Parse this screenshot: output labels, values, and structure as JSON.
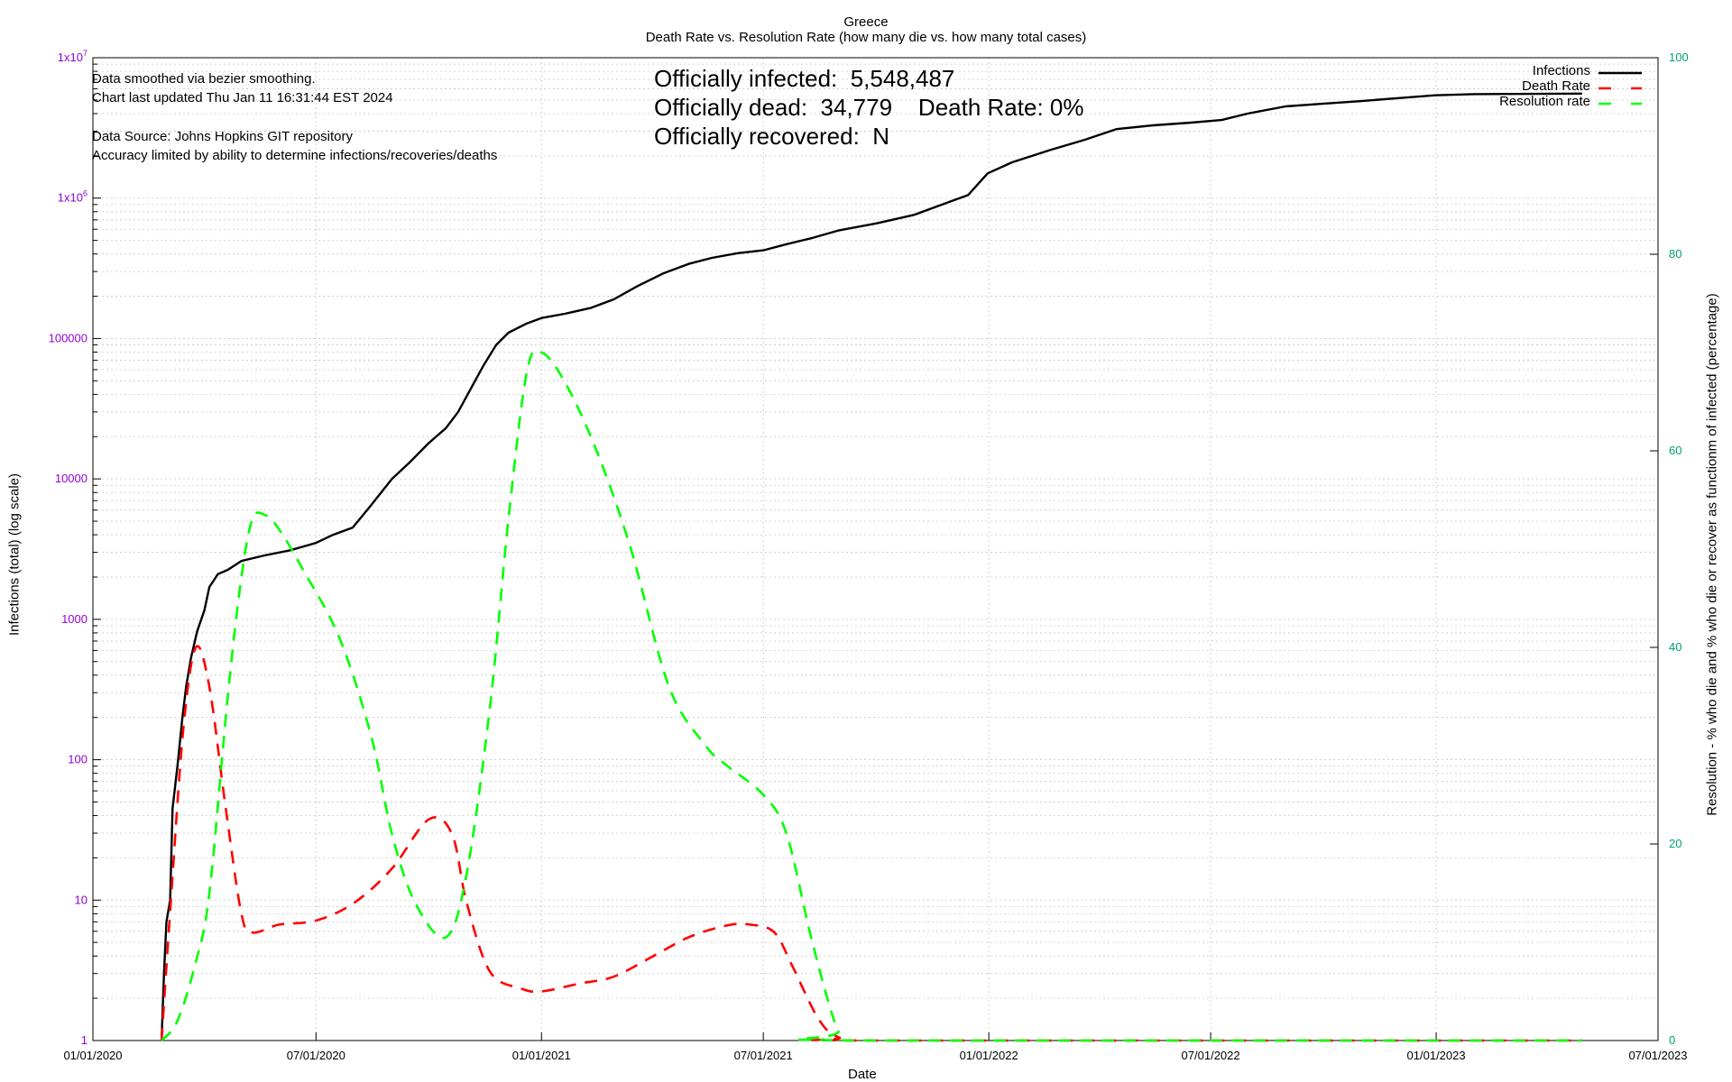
{
  "chart_data": {
    "type": "line",
    "title": "Greece",
    "subtitle": "Death Rate vs. Resolution Rate (how many die vs. how many total cases)",
    "xlabel": "Date",
    "ylabel_left": "Infections (total) (log scale)",
    "ylabel_right": "Resolution - % who die and % who die or recover as functionm of infected (percentage)",
    "x_type": "date",
    "xlim": [
      "2020-01-01",
      "2023-07-01"
    ],
    "x_ticks": [
      "01/01/2020",
      "07/01/2020",
      "01/01/2021",
      "07/01/2021",
      "01/01/2022",
      "07/01/2022",
      "01/01/2023",
      "07/01/2023"
    ],
    "y_left_scale": "log",
    "y_left_lim": [
      1,
      10000000
    ],
    "y_left_ticks": [
      {
        "value": 1,
        "label": "1"
      },
      {
        "value": 10,
        "label": "10"
      },
      {
        "value": 100,
        "label": "100"
      },
      {
        "value": 1000,
        "label": "1000"
      },
      {
        "value": 10000,
        "label": "10000"
      },
      {
        "value": 100000,
        "label": "100000"
      },
      {
        "value": 1000000,
        "label": "1x10",
        "sup": "6"
      },
      {
        "value": 10000000,
        "label": "1x10",
        "sup": "7"
      }
    ],
    "y_right_lim": [
      0,
      100
    ],
    "y_right_ticks": [
      0,
      20,
      40,
      60,
      80,
      100
    ],
    "grid": true,
    "legend_position": "top-right",
    "colors": {
      "left_axis": "#9400d3",
      "right_axis": "#009e73",
      "infections": "#000000",
      "death_rate": "#ff0000",
      "resolution_rate": "#00ff00"
    },
    "series": [
      {
        "name": "Infections",
        "axis": "left",
        "style": "solid",
        "points": [
          [
            "2020-02-26",
            1
          ],
          [
            "2020-02-28",
            3
          ],
          [
            "2020-03-01",
            7
          ],
          [
            "2020-03-04",
            10
          ],
          [
            "2020-03-06",
            45
          ],
          [
            "2020-03-10",
            90
          ],
          [
            "2020-03-14",
            200
          ],
          [
            "2020-03-17",
            330
          ],
          [
            "2020-03-21",
            530
          ],
          [
            "2020-03-26",
            820
          ],
          [
            "2020-04-01",
            1160
          ],
          [
            "2020-04-05",
            1700
          ],
          [
            "2020-04-12",
            2100
          ],
          [
            "2020-04-20",
            2250
          ],
          [
            "2020-05-01",
            2600
          ],
          [
            "2020-05-20",
            2850
          ],
          [
            "2020-06-10",
            3100
          ],
          [
            "2020-07-01",
            3500
          ],
          [
            "2020-07-15",
            4000
          ],
          [
            "2020-07-31",
            4500
          ],
          [
            "2020-08-15",
            6500
          ],
          [
            "2020-09-01",
            10000
          ],
          [
            "2020-09-15",
            13000
          ],
          [
            "2020-10-01",
            18000
          ],
          [
            "2020-10-15",
            23000
          ],
          [
            "2020-10-25",
            30000
          ],
          [
            "2020-11-05",
            45000
          ],
          [
            "2020-11-15",
            65000
          ],
          [
            "2020-11-25",
            90000
          ],
          [
            "2020-12-05",
            110000
          ],
          [
            "2020-12-20",
            128000
          ],
          [
            "2021-01-01",
            140000
          ],
          [
            "2021-01-20",
            150000
          ],
          [
            "2021-02-10",
            165000
          ],
          [
            "2021-03-01",
            190000
          ],
          [
            "2021-03-20",
            235000
          ],
          [
            "2021-04-10",
            290000
          ],
          [
            "2021-05-01",
            340000
          ],
          [
            "2021-05-20",
            375000
          ],
          [
            "2021-06-10",
            405000
          ],
          [
            "2021-07-01",
            425000
          ],
          [
            "2021-07-20",
            470000
          ],
          [
            "2021-08-10",
            520000
          ],
          [
            "2021-09-01",
            590000
          ],
          [
            "2021-10-01",
            660000
          ],
          [
            "2021-11-01",
            760000
          ],
          [
            "2021-12-01",
            950000
          ],
          [
            "2021-12-15",
            1050000
          ],
          [
            "2021-12-31",
            1500000
          ],
          [
            "2022-01-20",
            1800000
          ],
          [
            "2022-02-20",
            2200000
          ],
          [
            "2022-03-20",
            2600000
          ],
          [
            "2022-04-15",
            3100000
          ],
          [
            "2022-05-15",
            3300000
          ],
          [
            "2022-06-15",
            3450000
          ],
          [
            "2022-07-10",
            3600000
          ],
          [
            "2022-07-31",
            4000000
          ],
          [
            "2022-08-31",
            4500000
          ],
          [
            "2022-09-30",
            4700000
          ],
          [
            "2022-10-31",
            4900000
          ],
          [
            "2022-11-30",
            5150000
          ],
          [
            "2022-12-31",
            5400000
          ],
          [
            "2023-01-31",
            5500000
          ],
          [
            "2023-04-30",
            5548487
          ]
        ]
      },
      {
        "name": "Death Rate",
        "axis": "right",
        "style": "dashed",
        "points": [
          [
            "2020-02-26",
            0
          ],
          [
            "2020-03-05",
            15
          ],
          [
            "2020-03-15",
            32
          ],
          [
            "2020-03-25",
            40
          ],
          [
            "2020-04-05",
            36
          ],
          [
            "2020-04-18",
            24
          ],
          [
            "2020-05-01",
            13
          ],
          [
            "2020-05-10",
            11
          ],
          [
            "2020-06-01",
            11.8
          ],
          [
            "2020-07-01",
            12.2
          ],
          [
            "2020-08-01",
            14
          ],
          [
            "2020-09-01",
            17.5
          ],
          [
            "2020-10-01",
            22.5
          ],
          [
            "2020-10-20",
            21
          ],
          [
            "2020-11-01",
            14
          ],
          [
            "2020-11-20",
            7
          ],
          [
            "2020-12-15",
            5.3
          ],
          [
            "2021-01-01",
            5
          ],
          [
            "2021-02-01",
            5.8
          ],
          [
            "2021-03-01",
            6.5
          ],
          [
            "2021-04-01",
            8.5
          ],
          [
            "2021-05-01",
            10.5
          ],
          [
            "2021-06-01",
            11.7
          ],
          [
            "2021-06-20",
            11.8
          ],
          [
            "2021-07-10",
            11
          ],
          [
            "2021-07-25",
            7.5
          ],
          [
            "2021-08-15",
            2.2
          ],
          [
            "2021-09-01",
            0.3
          ],
          [
            "2021-10-01",
            0
          ],
          [
            "2023-04-30",
            0
          ]
        ]
      },
      {
        "name": "Resolution rate",
        "axis": "right",
        "style": "dashed",
        "points": [
          [
            "2020-02-26",
            0
          ],
          [
            "2020-03-10",
            2
          ],
          [
            "2020-03-25",
            8
          ],
          [
            "2020-04-05",
            15
          ],
          [
            "2020-04-20",
            35
          ],
          [
            "2020-05-01",
            47
          ],
          [
            "2020-05-10",
            53
          ],
          [
            "2020-05-20",
            53.5
          ],
          [
            "2020-06-01",
            52
          ],
          [
            "2020-06-20",
            48
          ],
          [
            "2020-07-20",
            41
          ],
          [
            "2020-08-15",
            31
          ],
          [
            "2020-09-01",
            21
          ],
          [
            "2020-09-20",
            14
          ],
          [
            "2020-10-15",
            10.5
          ],
          [
            "2020-11-01",
            17
          ],
          [
            "2020-11-20",
            34
          ],
          [
            "2020-12-05",
            53
          ],
          [
            "2020-12-20",
            68
          ],
          [
            "2021-01-01",
            70
          ],
          [
            "2021-01-20",
            67
          ],
          [
            "2021-02-15",
            60
          ],
          [
            "2021-03-15",
            50
          ],
          [
            "2021-04-15",
            36
          ],
          [
            "2021-05-15",
            30
          ],
          [
            "2021-06-01",
            28
          ],
          [
            "2021-07-01",
            25
          ],
          [
            "2021-07-20",
            21
          ],
          [
            "2021-08-10",
            10
          ],
          [
            "2021-08-31",
            1
          ],
          [
            "2021-09-15",
            0
          ],
          [
            "2023-04-30",
            0
          ]
        ]
      }
    ]
  },
  "annotations": {
    "smoothing": "Data smoothed via bezier smoothing.",
    "updated": "Chart last updated Thu Jan 11 16:31:44 EST 2024",
    "source": "Data Source: Johns Hopkins GIT repository",
    "accuracy": "Accuracy limited by ability to determine infections/recoveries/deaths"
  },
  "stats": {
    "infected": "Officially infected:  5,548,487",
    "dead": "Officially dead:  34,779    Death Rate: 0%",
    "recovered": "Officially recovered:  N"
  }
}
